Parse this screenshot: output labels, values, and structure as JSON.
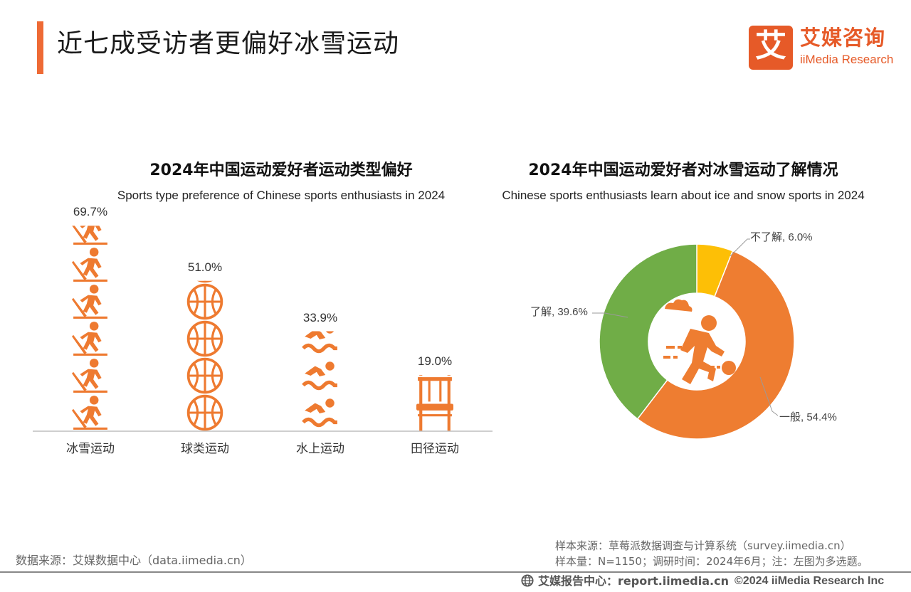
{
  "page": {
    "title": "近七成受访者更偏好冰雪运动",
    "accent_color": "#ee6a35"
  },
  "logo": {
    "box_char": "艾",
    "cn": "艾媒咨询",
    "en": "iiMedia Research",
    "color": "#e65a28"
  },
  "chart_data": [
    {
      "type": "bar",
      "title": "2024年中国运动爱好者运动类型偏好",
      "subtitle": "Sports type preference of Chinese sports enthusiasts in 2024",
      "categories": [
        "冰雪运动",
        "球类运动",
        "水上运动",
        "田径运动"
      ],
      "values": [
        69.7,
        51.0,
        33.9,
        19.0
      ],
      "value_labels": [
        "69.7%",
        "51.0%",
        "33.9%",
        "19.0%"
      ],
      "icons": [
        "skier-icon",
        "basketball-icon",
        "swimmer-icon",
        "hurdle-icon"
      ],
      "ylim": [
        0,
        70
      ],
      "color": "#ee7a30",
      "xlabel": "",
      "ylabel": ""
    },
    {
      "type": "pie",
      "style": "donut",
      "title": "2024年中国运动爱好者对冰雪运动了解情况",
      "subtitle": "Chinese sports enthusiasts learn about ice and snow sports in 2024",
      "slices": [
        {
          "label": "不了解",
          "value": 6.0,
          "display": "不了解, 6.0%",
          "color": "#fdbf06"
        },
        {
          "label": "一般",
          "value": 54.4,
          "display": "一般, 54.4%",
          "color": "#ee7d31"
        },
        {
          "label": "了解",
          "value": 39.6,
          "display": "了解, 39.6%",
          "color": "#70ad47"
        }
      ],
      "center_icon": "running-athlete-icon"
    }
  ],
  "source": {
    "left": "数据来源：艾媒数据中心（data.iimedia.cn）",
    "right_line1": "样本来源：草莓派数据调查与计算系统（survey.iimedia.cn）",
    "right_line2": "样本量：N=1150；调研时间：2024年6月；注：左图为多选题。"
  },
  "footer": {
    "left": "艾媒报告中心：report.iimedia.cn",
    "right": "©2024  iiMedia Research  Inc"
  }
}
